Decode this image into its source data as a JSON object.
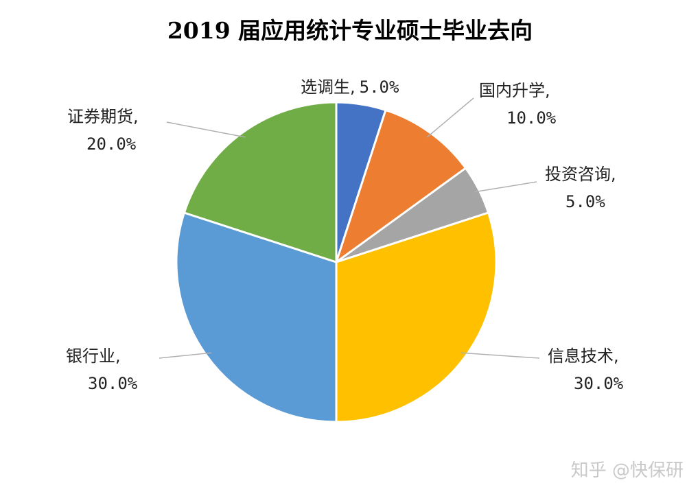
{
  "chart_data": {
    "type": "pie",
    "title": "2019 届应用统计专业硕士毕业去向",
    "slices": [
      {
        "label": "选调生,",
        "value": 5.0,
        "value_text": "5.0%",
        "color": "#4472C4"
      },
      {
        "label": "国内升学,",
        "value": 10.0,
        "value_text": "10.0%",
        "color": "#ED7D31"
      },
      {
        "label": "投资咨询,",
        "value": 5.0,
        "value_text": "5.0%",
        "color": "#A5A5A5"
      },
      {
        "label": "信息技术,",
        "value": 30.0,
        "value_text": "30.0%",
        "color": "#FFC000"
      },
      {
        "label": "银行业,",
        "value": 30.0,
        "value_text": "30.0%",
        "color": "#5B9BD5"
      },
      {
        "label": "证券期货,",
        "value": 20.0,
        "value_text": "20.0%",
        "color": "#70AD47"
      }
    ]
  },
  "watermark": "知乎 @快保研"
}
